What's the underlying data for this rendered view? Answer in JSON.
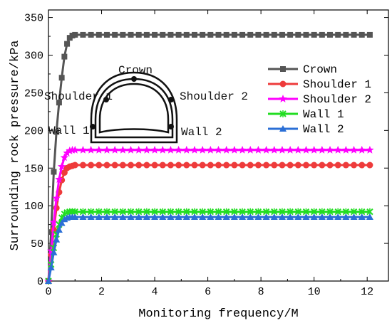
{
  "chart_data": {
    "type": "line",
    "title": "",
    "xlabel": "Monitoring frequency/M",
    "ylabel": "Surrounding rock pressure/kPa",
    "xlim": [
      0,
      12.8
    ],
    "ylim": [
      0,
      360
    ],
    "x_ticks": [
      0,
      2,
      4,
      6,
      8,
      10,
      12
    ],
    "y_ticks": [
      0,
      50,
      100,
      150,
      200,
      250,
      300,
      350
    ],
    "x_tick_labels": [
      "0",
      "2",
      "4",
      "6",
      "8",
      "10",
      "12"
    ],
    "y_tick_labels": [
      "0",
      "50",
      "100",
      "150",
      "200",
      "250",
      "300",
      "350"
    ],
    "grid": false,
    "legend_position": "top-right",
    "series": [
      {
        "name": "Crown",
        "color": "#555555",
        "marker": "square",
        "x": [
          0,
          0.1,
          0.2,
          0.3,
          0.4,
          0.5,
          0.6,
          0.7,
          0.8,
          0.9,
          1.0
        ],
        "y": [
          0,
          65,
          145,
          198,
          237,
          270,
          298,
          315,
          323,
          326,
          327
        ],
        "plateau": 327,
        "x_end": 12.1,
        "step": 0.3
      },
      {
        "name": "Shoulder 1",
        "color": "#ee3b3b",
        "marker": "circle",
        "x": [
          0,
          0.1,
          0.2,
          0.3,
          0.4,
          0.5,
          0.6,
          0.7,
          0.8,
          0.9,
          1.0
        ],
        "y": [
          0,
          35,
          68,
          97,
          118,
          134,
          144,
          150,
          152,
          153,
          154
        ],
        "plateau": 154,
        "x_end": 12.2,
        "step": 0.3
      },
      {
        "name": "Shoulder 2",
        "color": "#ff00ff",
        "marker": "star",
        "x": [
          0,
          0.1,
          0.2,
          0.3,
          0.4,
          0.5,
          0.6,
          0.7,
          0.8,
          0.9,
          1.0
        ],
        "y": [
          0,
          40,
          78,
          110,
          135,
          152,
          164,
          170,
          173,
          174,
          174
        ],
        "plateau": 174,
        "x_end": 12.2,
        "step": 0.3
      },
      {
        "name": "Wall 1",
        "color": "#22dd22",
        "marker": "cross",
        "x": [
          0,
          0.1,
          0.2,
          0.3,
          0.4,
          0.5,
          0.6,
          0.7,
          0.8,
          0.9,
          1.0
        ],
        "y": [
          0,
          22,
          44,
          62,
          75,
          84,
          89,
          91,
          92,
          92,
          92
        ],
        "plateau": 92,
        "x_end": 12.2,
        "step": 0.3
      },
      {
        "name": "Wall 2",
        "color": "#2b6fd6",
        "marker": "triangle",
        "x": [
          0,
          0.1,
          0.2,
          0.3,
          0.4,
          0.5,
          0.6,
          0.7,
          0.8,
          0.9,
          1.0
        ],
        "y": [
          0,
          18,
          38,
          55,
          68,
          77,
          82,
          84,
          85,
          85,
          85
        ],
        "plateau": 85,
        "x_end": 12.2,
        "step": 0.3
      }
    ],
    "inset": {
      "labels": {
        "crown": "Crown",
        "shoulder1": "Shoulder 1",
        "shoulder2": "Shoulder 2",
        "wall1": "Wall 1",
        "wall2": "Wall 2"
      }
    }
  }
}
